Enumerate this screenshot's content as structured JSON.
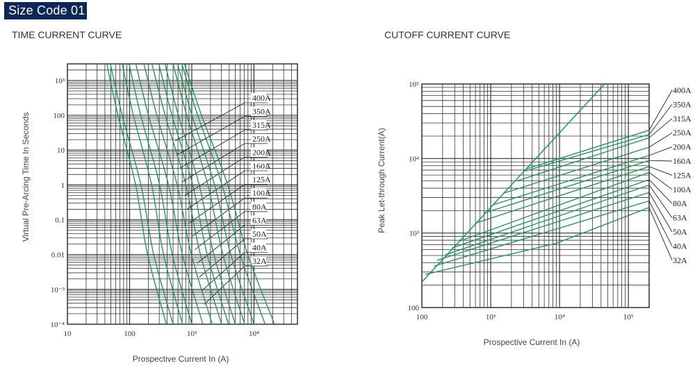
{
  "header": {
    "badge": "Size Code 01"
  },
  "chart_data": [
    {
      "type": "line",
      "title": "TIME CURRENT CURVE",
      "xlabel": "Prospective Current In (A)",
      "ylabel": "Virtual Pre-Arcing Time In Seconds",
      "xscale": "log",
      "yscale": "log",
      "xlim": [
        10,
        50000
      ],
      "ylim": [
        0.0001,
        3000
      ],
      "grid": true,
      "line_color": "#1a9a5a",
      "xticks": [
        {
          "v": 10,
          "label": "10"
        },
        {
          "v": 100,
          "label": "100"
        },
        {
          "v": 1000,
          "label": "10³"
        },
        {
          "v": 10000,
          "label": "10⁴"
        }
      ],
      "yticks": [
        {
          "v": 1000,
          "label": "10³"
        },
        {
          "v": 100,
          "label": "100"
        },
        {
          "v": 10,
          "label": "10"
        },
        {
          "v": 1,
          "label": "1"
        },
        {
          "v": 0.1,
          "label": "0.1"
        },
        {
          "v": 0.01,
          "label": "0.01"
        },
        {
          "v": 0.001,
          "label": "10⁻³"
        },
        {
          "v": 0.0001,
          "label": "10⁻⁴"
        }
      ],
      "t_points": [
        3000,
        100,
        1,
        0.01,
        0.0001
      ],
      "series": [
        {
          "name": "32A",
          "x": [
            43,
            65,
            125,
            195,
            390
          ]
        },
        {
          "name": "40A",
          "x": [
            49,
            76,
            152,
            244,
            500
          ]
        },
        {
          "name": "50A",
          "x": [
            76,
            115,
            226,
            352,
            710
          ]
        },
        {
          "name": "63A",
          "x": [
            98,
            151,
            304,
            486,
            1000
          ]
        },
        {
          "name": "80A",
          "x": [
            126,
            201,
            423,
            705,
            1510
          ]
        },
        {
          "name": "100A",
          "x": [
            170,
            274,
            582,
            984,
            2140
          ]
        },
        {
          "name": "125A",
          "x": [
            229,
            373,
            804,
            1374,
            3020
          ]
        },
        {
          "name": "160A",
          "x": [
            295,
            481,
            1035,
            1770,
            3890
          ]
        },
        {
          "name": "200A",
          "x": [
            372,
            608,
            1315,
            2265,
            5010
          ]
        },
        {
          "name": "250A",
          "x": [
            501,
            828,
            1815,
            3162,
            7080
          ]
        },
        {
          "name": "315A",
          "x": [
            589,
            1007,
            2323,
            4246,
            10000
          ]
        },
        {
          "name": "350A",
          "x": [
            692,
            1245,
            3069,
            6012,
            15100
          ]
        },
        {
          "name": "400A",
          "x": [
            759,
            1435,
            3784,
            7943,
            21400
          ]
        }
      ]
    },
    {
      "type": "line",
      "title": "CUTOFF CURRENT CURVE",
      "xlabel": "Prospective Current In (A)",
      "ylabel": "Peak Let-through Current(A)",
      "xscale": "log",
      "yscale": "log",
      "xlim": [
        100,
        200000
      ],
      "ylim": [
        100,
        100000
      ],
      "grid": true,
      "line_color": "#1a9a5a",
      "xticks": [
        {
          "v": 100,
          "label": "100"
        },
        {
          "v": 1000,
          "label": "10³"
        },
        {
          "v": 10000,
          "label": "10⁴"
        },
        {
          "v": 100000,
          "label": "10⁵"
        }
      ],
      "yticks": [
        {
          "v": 100000,
          "label": "10⁵"
        },
        {
          "v": 10000,
          "label": "10⁴"
        },
        {
          "v": 1000,
          "label": "10³"
        },
        {
          "v": 100,
          "label": "100"
        }
      ],
      "max_peak_line": {
        "x": [
          100,
          45000
        ],
        "y": [
          220,
          100000
        ]
      },
      "series": [
        {
          "name": "400A",
          "x": [
            3200,
            10000,
            200000
          ],
          "y": [
            7200,
            10000,
            24000
          ]
        },
        {
          "name": "350A",
          "x": [
            3200,
            200000
          ],
          "y": [
            6800,
            21000
          ]
        },
        {
          "name": "315A",
          "x": [
            2400,
            200000
          ],
          "y": [
            5000,
            19000
          ]
        },
        {
          "name": "250A",
          "x": [
            1500,
            200000
          ],
          "y": [
            3400,
            14200
          ]
        },
        {
          "name": "200A",
          "x": [
            1100,
            200000
          ],
          "y": [
            2400,
            11000
          ]
        },
        {
          "name": "160A",
          "x": [
            810,
            200000
          ],
          "y": [
            1860,
            9400
          ]
        },
        {
          "name": "125A",
          "x": [
            590,
            200000
          ],
          "y": [
            1350,
            7800
          ]
        },
        {
          "name": "100A",
          "x": [
            355,
            200000
          ],
          "y": [
            780,
            6500
          ]
        },
        {
          "name": "80A",
          "x": [
            275,
            200000
          ],
          "y": [
            630,
            5200
          ]
        },
        {
          "name": "63A",
          "x": [
            220,
            200000
          ],
          "y": [
            510,
            4400
          ]
        },
        {
          "name": "50A",
          "x": [
            165,
            200000
          ],
          "y": [
            430,
            3500
          ]
        },
        {
          "name": "40A",
          "x": [
            150,
            200000
          ],
          "y": [
            360,
            2700
          ]
        },
        {
          "name": "32A",
          "x": [
            112,
            9000,
            200000
          ],
          "y": [
            278,
            730,
            2200
          ]
        }
      ]
    }
  ]
}
